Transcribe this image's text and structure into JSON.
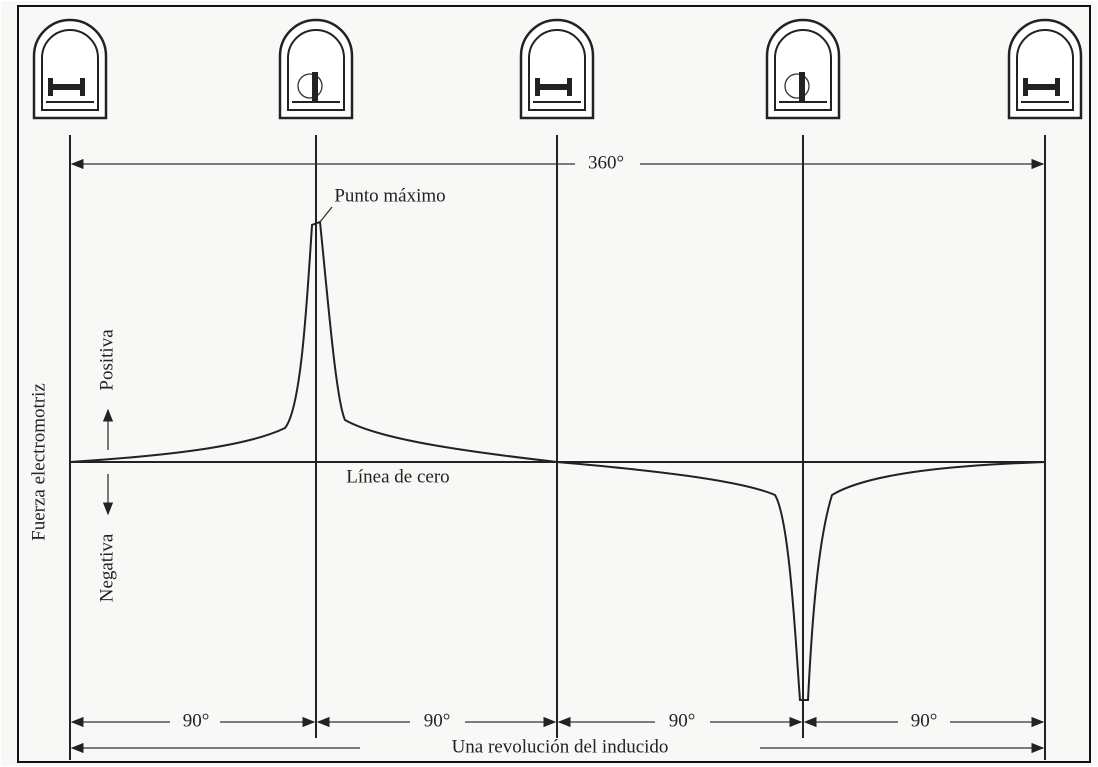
{
  "full_turn": "360°",
  "peak_label": "Punto máximo",
  "zero_label": "Línea de cero",
  "y_axis": {
    "title": "Fuerza electromotriz",
    "positive": "Positiva",
    "negative": "Negativa"
  },
  "quarters": [
    "90°",
    "90°",
    "90°",
    "90°"
  ],
  "revolution_label": "Una revolución del inducido"
}
